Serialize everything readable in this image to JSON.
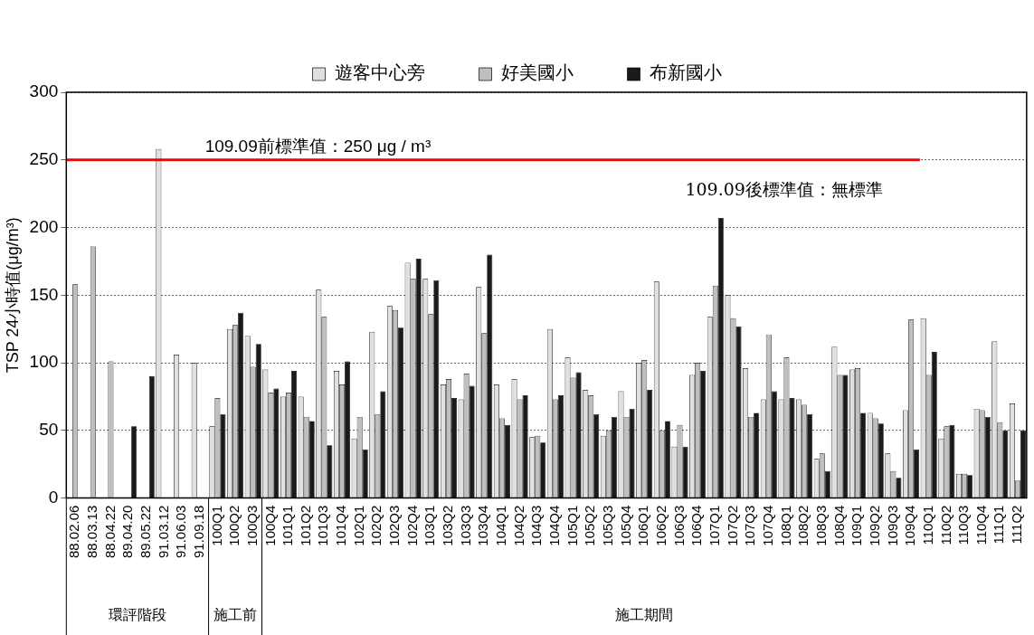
{
  "chart_data": {
    "type": "bar",
    "ylabel": "TSP 24小時值(μg/m³)",
    "categories": [
      "88.02.06",
      "88.03.13",
      "88.04.22",
      "89.04.20",
      "89.05.22",
      "91.03.12",
      "91.06.03",
      "91.09.18",
      "100Q1",
      "100Q2",
      "100Q3",
      "100Q4",
      "101Q1",
      "101Q2",
      "101Q3",
      "101Q4",
      "102Q1",
      "102Q2",
      "102Q3",
      "102Q4",
      "103Q1",
      "103Q2",
      "103Q3",
      "103Q4",
      "104Q1",
      "104Q2",
      "104Q3",
      "104Q4",
      "105Q1",
      "105Q2",
      "105Q3",
      "105Q4",
      "106Q1",
      "106Q2",
      "106Q3",
      "106Q4",
      "107Q1",
      "107Q2",
      "107Q3",
      "107Q4",
      "108Q1",
      "108Q2",
      "108Q3",
      "108Q4",
      "109Q1",
      "109Q2",
      "109Q3",
      "109Q4",
      "110Q1",
      "110Q2",
      "110Q3",
      "110Q4",
      "111Q1",
      "111Q2"
    ],
    "series": [
      {
        "name": "遊客中心旁",
        "color": "#e0e0e0",
        "values": [
          null,
          null,
          null,
          null,
          null,
          258,
          106,
          100,
          53,
          125,
          120,
          95,
          75,
          75,
          154,
          94,
          44,
          123,
          142,
          174,
          162,
          84,
          73,
          156,
          84,
          88,
          45,
          125,
          104,
          80,
          46,
          79,
          100,
          160,
          38,
          91,
          134,
          150,
          96,
          73,
          73,
          73,
          29,
          112,
          95,
          63,
          33,
          65,
          133,
          44,
          18,
          66,
          116,
          70
        ]
      },
      {
        "name": "好美國小",
        "color": "#bfbfbf",
        "values": [
          158,
          186,
          101,
          null,
          null,
          null,
          null,
          null,
          74,
          128,
          97,
          78,
          78,
          60,
          134,
          84,
          60,
          62,
          139,
          162,
          136,
          88,
          92,
          122,
          59,
          73,
          46,
          73,
          89,
          76,
          50,
          60,
          102,
          50,
          54,
          100,
          157,
          133,
          60,
          121,
          104,
          69,
          33,
          91,
          96,
          59,
          20,
          132,
          91,
          53,
          18,
          65,
          56,
          13
        ]
      },
      {
        "name": "布新國小",
        "color": "#1a1a1a",
        "values": [
          null,
          null,
          null,
          53,
          90,
          null,
          null,
          null,
          62,
          137,
          114,
          81,
          94,
          57,
          39,
          101,
          36,
          79,
          126,
          177,
          161,
          74,
          83,
          180,
          54,
          76,
          41,
          76,
          93,
          62,
          60,
          66,
          80,
          57,
          38,
          94,
          207,
          127,
          63,
          79,
          74,
          62,
          20,
          91,
          63,
          55,
          15,
          36,
          108,
          54,
          17,
          60,
          50,
          50
        ]
      }
    ],
    "ylim": [
      0,
      300
    ],
    "yticks": [
      0,
      50,
      100,
      150,
      200,
      250,
      300
    ],
    "grid": "y",
    "legend": "top",
    "ref_lines": [
      {
        "axis": "y",
        "value": 250,
        "label": "109.09前標準值：250 μg / m³",
        "color": "#ff0000"
      }
    ],
    "annotations": [
      "109.09後標準值：無標準",
      "環評階段",
      "施工前",
      "施工期間"
    ]
  }
}
